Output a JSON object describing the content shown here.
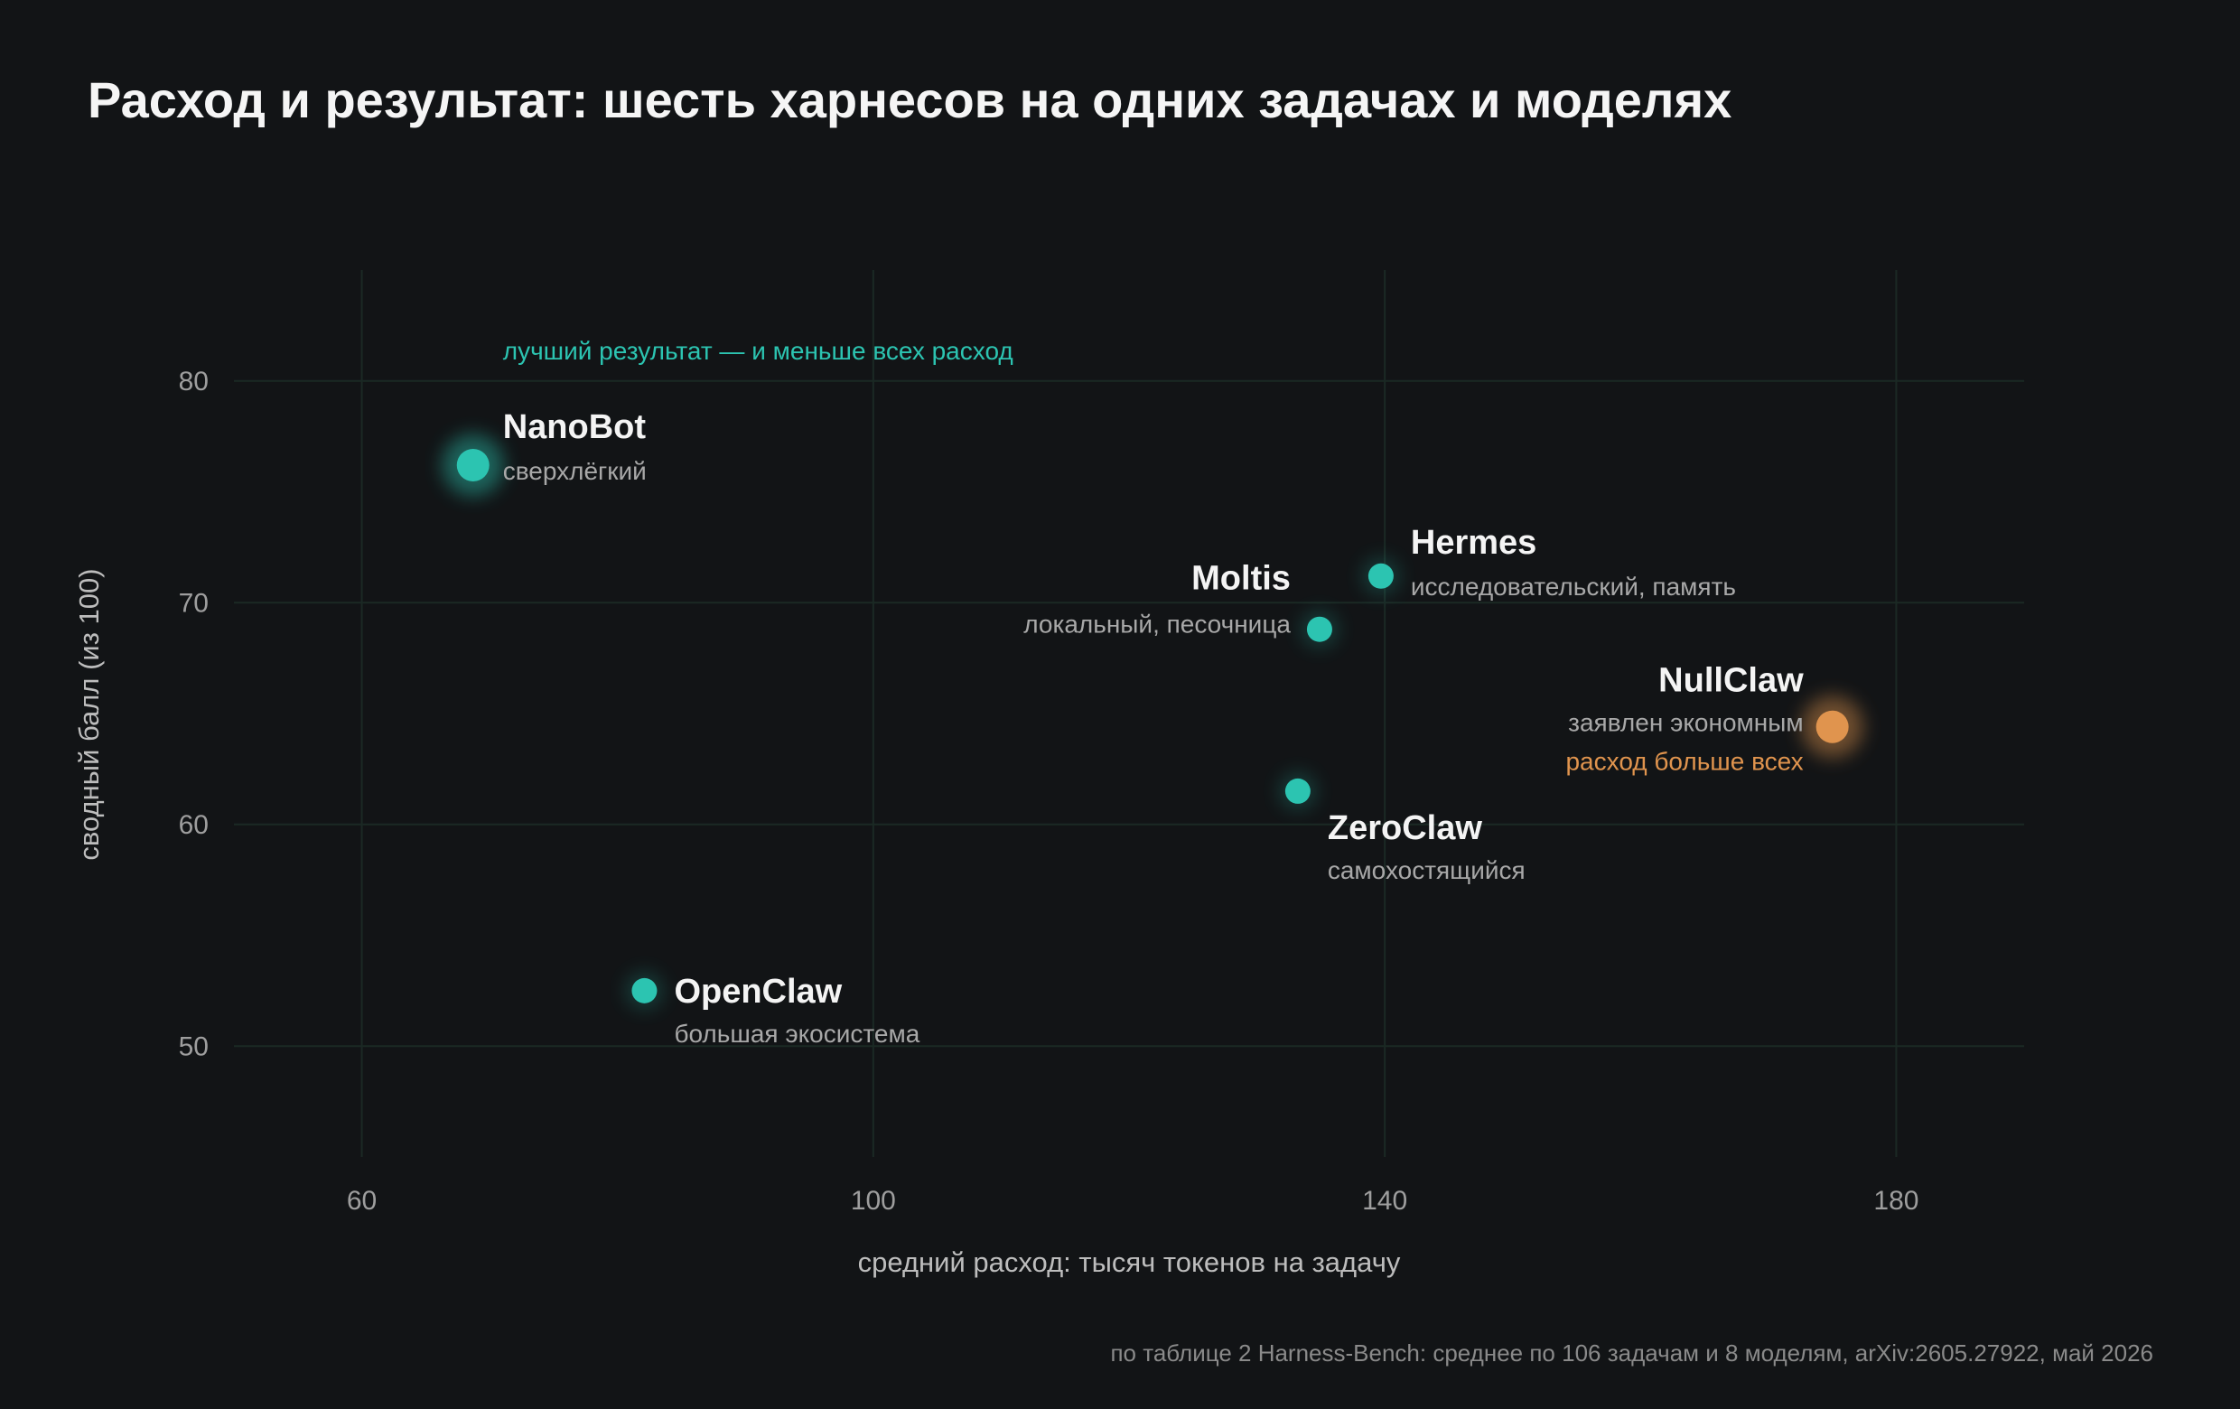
{
  "footnote": "по таблице 2 Harness-Bench: среднее по 106 задачам и 8 моделям, arXiv:2605.27922, май 2026",
  "colors": {
    "background": "#121416",
    "teal": "#2cc4b1",
    "orange": "#e0944e",
    "grid": "#1b2924"
  },
  "chart_data": {
    "type": "scatter",
    "title": "Расход и результат: шесть харнесов на одних задачах и моделях",
    "xlabel": "средний расход: тысяч токенов на задачу",
    "ylabel": "сводный балл (из 100)",
    "xlim": [
      50,
      190
    ],
    "ylim": [
      45,
      85
    ],
    "xticks": [
      60,
      100,
      140,
      180
    ],
    "yticks": [
      50,
      60,
      70,
      80
    ],
    "grid": true,
    "legend": "none",
    "points": [
      {
        "label": "NanoBot",
        "note": "сверхлёгкий",
        "x": 68.7,
        "y": 76.2,
        "annotation": "лучший результат — и меньше всех расход",
        "color": "#2cc4b1"
      },
      {
        "label": "Hermes",
        "note": "исследовательский, память",
        "x": 139.7,
        "y": 71.2,
        "color": "#2cc4b1"
      },
      {
        "label": "Moltis",
        "note": "локальный, песочница",
        "x": 134.9,
        "y": 68.8,
        "color": "#2cc4b1"
      },
      {
        "label": "NullClaw",
        "note": "заявлен экономным",
        "x": 175.0,
        "y": 64.4,
        "annotation": "расход больше всех",
        "color": "#e0944e"
      },
      {
        "label": "ZeroClaw",
        "note": "самохостящийся",
        "x": 133.2,
        "y": 61.5,
        "color": "#2cc4b1"
      },
      {
        "label": "OpenClaw",
        "note": "большая экосистема",
        "x": 82.1,
        "y": 52.5,
        "color": "#2cc4b1"
      }
    ]
  }
}
